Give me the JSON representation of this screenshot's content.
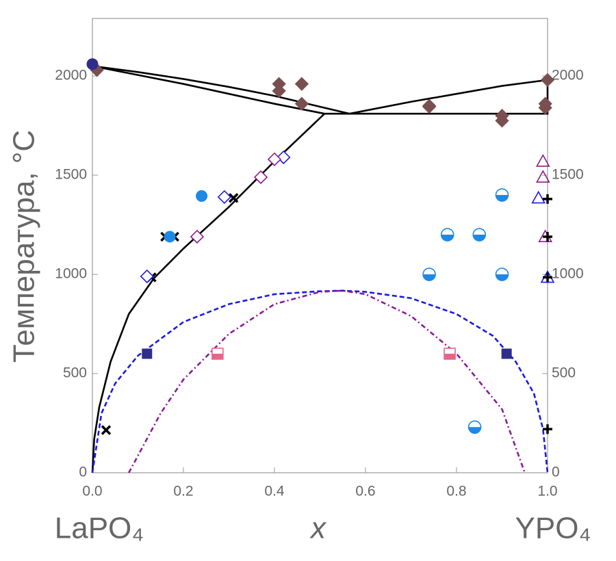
{
  "chart_data": {
    "type": "phase-diagram",
    "y_label": "Температура, °C",
    "x_label": "x",
    "left_label": "LaPO₄",
    "right_label": "YPO₄",
    "xlim": [
      0,
      1
    ],
    "ylim": [
      0,
      2290
    ],
    "xticks": [
      {
        "value": 0,
        "label": "0.0"
      },
      0.2,
      0.4,
      0.6,
      0.8,
      {
        "value": 1,
        "label": "1.0"
      }
    ],
    "yticks": [
      0,
      500,
      1000,
      1500,
      2000
    ],
    "y2ticks": [
      0,
      500,
      1000,
      1500,
      2000
    ],
    "series": [
      {
        "kind": "line",
        "color": "#000000",
        "dash": "solid",
        "x": [
          0,
          0.1,
          0.2,
          0.3,
          0.4,
          0.5,
          0.565
        ],
        "values": [
          2050,
          2020,
          1985,
          1945,
          1900,
          1845,
          1810
        ]
      },
      {
        "kind": "line",
        "color": "#000000",
        "dash": "solid",
        "x": [
          0,
          0.1,
          0.2,
          0.3,
          0.4,
          0.51
        ],
        "values": [
          2050,
          2005,
          1960,
          1910,
          1860,
          1810
        ]
      },
      {
        "kind": "line",
        "color": "#000000",
        "dash": "solid",
        "x": [
          0.565,
          0.7,
          0.8,
          0.9,
          1
        ],
        "values": [
          1810,
          1870,
          1910,
          1950,
          1980
        ]
      },
      {
        "kind": "line",
        "color": "#000000",
        "dash": "solid",
        "x": [
          0.51,
          1,
          1
        ],
        "values": [
          1810,
          1810,
          1980
        ]
      },
      {
        "kind": "line",
        "color": "#000000",
        "dash": "solid",
        "x": [
          0.51,
          0.4,
          0.3,
          0.2,
          0.135,
          0.08,
          0.04,
          0.015,
          0.004,
          0
        ],
        "values": [
          1810,
          1570,
          1340,
          1130,
          980,
          800,
          560,
          330,
          170,
          0
        ]
      },
      {
        "kind": "line",
        "color": "#1a1ae6",
        "dash": "dash",
        "x": [
          0,
          0.02,
          0.05,
          0.1,
          0.2,
          0.3,
          0.4,
          0.5,
          0.55,
          0.6,
          0.7,
          0.8,
          0.88,
          0.93,
          0.97,
          0.99,
          1
        ],
        "values": [
          0,
          300,
          450,
          590,
          760,
          850,
          900,
          915,
          918,
          912,
          880,
          800,
          690,
          560,
          400,
          220,
          0
        ]
      },
      {
        "kind": "line",
        "color": "#8b1a9b",
        "dash": "dashdot",
        "x": [
          0.08,
          0.15,
          0.2,
          0.3,
          0.4,
          0.5,
          0.55,
          0.6,
          0.7,
          0.8,
          0.9,
          0.95
        ],
        "values": [
          0,
          300,
          470,
          700,
          850,
          912,
          918,
          900,
          790,
          600,
          320,
          0
        ]
      },
      {
        "kind": "scatter",
        "marker": "diamond",
        "color": "#7a4f4f",
        "fill": true,
        "x": [
          0.01,
          0.41,
          0.41,
          0.46,
          0.46,
          0.74,
          0.74,
          0.9,
          0.9,
          0.995,
          0.995,
          1.0
        ],
        "values": [
          2030,
          1960,
          1925,
          1960,
          1860,
          1850,
          1845,
          1800,
          1775,
          1860,
          1840,
          1980
        ]
      },
      {
        "kind": "scatter",
        "marker": "cross",
        "color": "#000000",
        "fill": true,
        "x": [
          0.03,
          0.13,
          0.16,
          0.18,
          0.31
        ],
        "values": [
          215,
          985,
          1190,
          1190,
          1385
        ]
      },
      {
        "kind": "scatter",
        "marker": "diamond",
        "color": "#1a1ae6",
        "fill": false,
        "x": [
          0.12,
          0.29,
          0.42
        ],
        "values": [
          990,
          1390,
          1590
        ]
      },
      {
        "kind": "scatter",
        "marker": "diamond",
        "color": "#8b1a8b",
        "fill": false,
        "x": [
          0.23,
          0.37,
          0.4
        ],
        "values": [
          1190,
          1490,
          1580
        ]
      },
      {
        "kind": "scatter",
        "marker": "circle",
        "color": "#1e88e5",
        "fill": true,
        "x": [
          0.17,
          0.24
        ],
        "values": [
          1190,
          1395
        ]
      },
      {
        "kind": "scatter",
        "marker": "halfcircle",
        "color": "#1e88e5",
        "fill": true,
        "x": [
          0.74,
          0.78,
          0.85,
          0.9,
          0.9,
          0.84
        ],
        "values": [
          1000,
          1200,
          1200,
          1400,
          1000,
          230
        ]
      },
      {
        "kind": "scatter",
        "marker": "square",
        "color": "#2e2e8a",
        "fill": true,
        "x": [
          0.12,
          0.91
        ],
        "values": [
          600,
          600
        ]
      },
      {
        "kind": "scatter",
        "marker": "halfsquare",
        "color": "#e8658a",
        "fill": true,
        "x": [
          0.275,
          0.785
        ],
        "values": [
          600,
          600
        ]
      },
      {
        "kind": "scatter",
        "marker": "triangle",
        "color": "#8b1a8b",
        "fill": false,
        "x": [
          0.99,
          0.99,
          0.995
        ],
        "values": [
          1570,
          1490,
          1190
        ]
      },
      {
        "kind": "scatter",
        "marker": "triangle",
        "color": "#1a1ae6",
        "fill": false,
        "x": [
          0.98,
          1.0
        ],
        "values": [
          1385,
          985
        ]
      },
      {
        "kind": "scatter",
        "marker": "plus",
        "color": "#000000",
        "fill": true,
        "x": [
          1.0,
          1.0,
          1.0,
          1.0
        ],
        "values": [
          1380,
          1190,
          985,
          220
        ]
      },
      {
        "kind": "scatter",
        "marker": "circle",
        "color": "#2e2e8a",
        "fill": true,
        "x": [
          0.0
        ],
        "values": [
          2060
        ]
      }
    ]
  }
}
